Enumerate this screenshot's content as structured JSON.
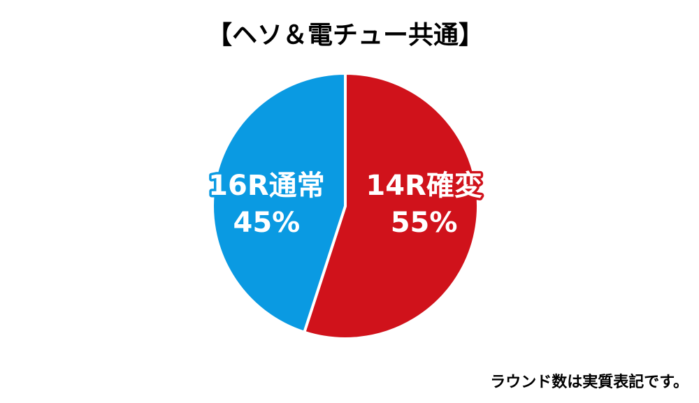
{
  "chart_data": {
    "type": "pie",
    "title": "【ヘソ＆電チュー共通】",
    "categories": [
      "14R確変",
      "16R通常"
    ],
    "values": [
      55,
      45
    ],
    "value_labels": [
      "55%",
      "45%"
    ],
    "colors": [
      "#d0121b",
      "#0a9ae2"
    ],
    "annotation": "ラウンド数は実質表記です。"
  }
}
